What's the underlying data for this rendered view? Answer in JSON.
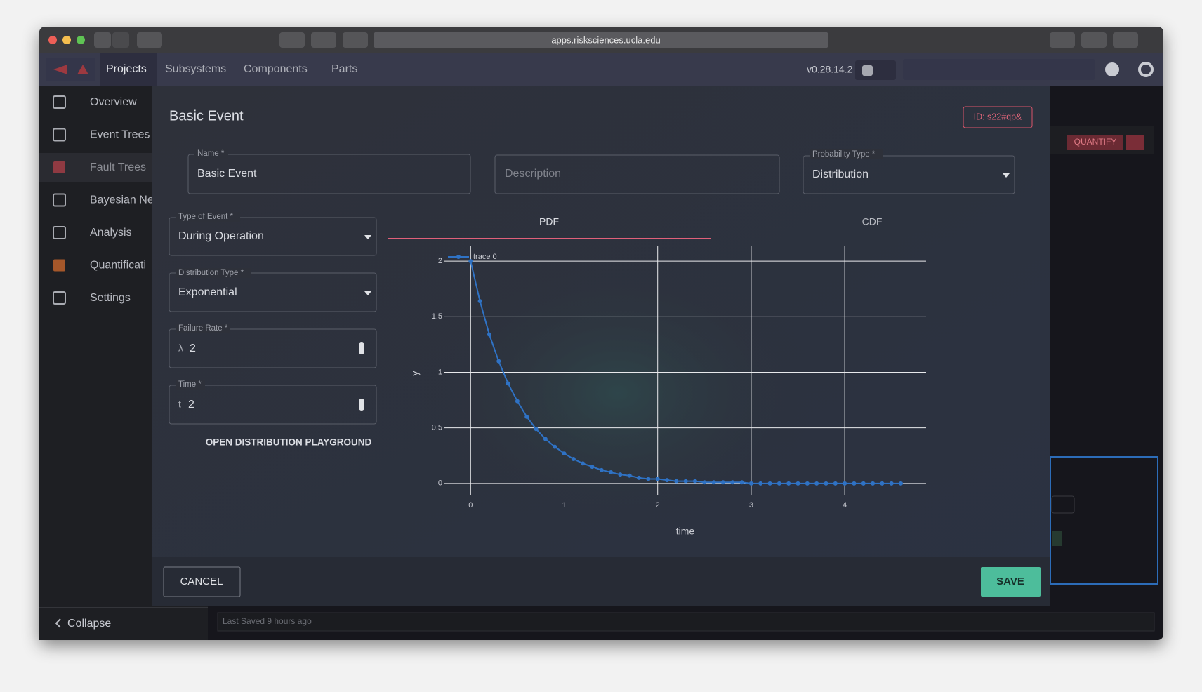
{
  "browser": {
    "url": "apps.risksciences.ucla.edu"
  },
  "nav": {
    "items": [
      "Projects",
      "Subsystems",
      "Components",
      "Parts"
    ],
    "version": "v0.28.14.2"
  },
  "sidebar": {
    "items": [
      "Overview",
      "Event Trees",
      "Fault Trees",
      "Bayesian Ne",
      "Analysis",
      "Quantificati",
      "Settings"
    ],
    "collapse": "Collapse"
  },
  "background": {
    "quantify": "QUANTIFY",
    "status": "Last Saved 9 hours ago"
  },
  "dialog": {
    "title": "Basic Event",
    "id": "ID: s22#qp&",
    "name": {
      "label": "Name *",
      "value": "Basic Event"
    },
    "description": {
      "placeholder": "Description"
    },
    "probability_type": {
      "label": "Probability Type *",
      "value": "Distribution"
    },
    "event_type": {
      "label": "Type of Event *",
      "value": "During Operation"
    },
    "distribution_type": {
      "label": "Distribution Type *",
      "value": "Exponential"
    },
    "failure_rate": {
      "label": "Failure Rate *",
      "prefix": "λ",
      "value": 2
    },
    "time": {
      "label": "Time *",
      "prefix": "t",
      "value": 2
    },
    "link": "OPEN DISTRIBUTION PLAYGROUND",
    "tabs": [
      "PDF",
      "CDF"
    ],
    "cancel": "CANCEL",
    "save": "SAVE"
  },
  "chart_data": {
    "type": "line",
    "xlabel": "time",
    "ylabel": "y",
    "x": [
      0,
      0.1,
      0.2,
      0.3,
      0.4,
      0.5,
      0.6,
      0.7,
      0.8,
      0.9,
      1,
      1.1,
      1.2,
      1.3,
      1.4,
      1.5,
      1.6,
      1.7,
      1.8,
      1.9,
      2,
      2.1,
      2.2,
      2.3,
      2.4,
      2.5,
      2.6,
      2.7,
      2.8,
      2.9,
      3,
      3.1,
      3.2,
      3.3,
      3.4,
      3.5,
      3.6,
      3.7,
      3.8,
      3.9,
      4,
      4.1,
      4.2,
      4.3,
      4.4,
      4.5,
      4.6
    ],
    "series": [
      {
        "name": "trace 0",
        "color": "#2f72c4",
        "values": [
          2,
          1.64,
          1.34,
          1.1,
          0.9,
          0.74,
          0.6,
          0.49,
          0.4,
          0.33,
          0.27,
          0.22,
          0.18,
          0.15,
          0.12,
          0.1,
          0.08,
          0.07,
          0.05,
          0.04,
          0.04,
          0.03,
          0.02,
          0.02,
          0.02,
          0.01,
          0.01,
          0.01,
          0.01,
          0.01,
          0,
          0,
          0,
          0,
          0,
          0,
          0,
          0,
          0,
          0,
          0,
          0,
          0,
          0,
          0,
          0,
          0
        ]
      }
    ],
    "xlim": [
      -0.28,
      4.87
    ],
    "ylim": [
      -0.14,
      2.14
    ],
    "xticks": [
      0,
      1,
      2,
      3,
      4
    ],
    "yticks": [
      0,
      0.5,
      1,
      1.5,
      2
    ],
    "grid": true,
    "markers": true,
    "legend": "top-left"
  }
}
